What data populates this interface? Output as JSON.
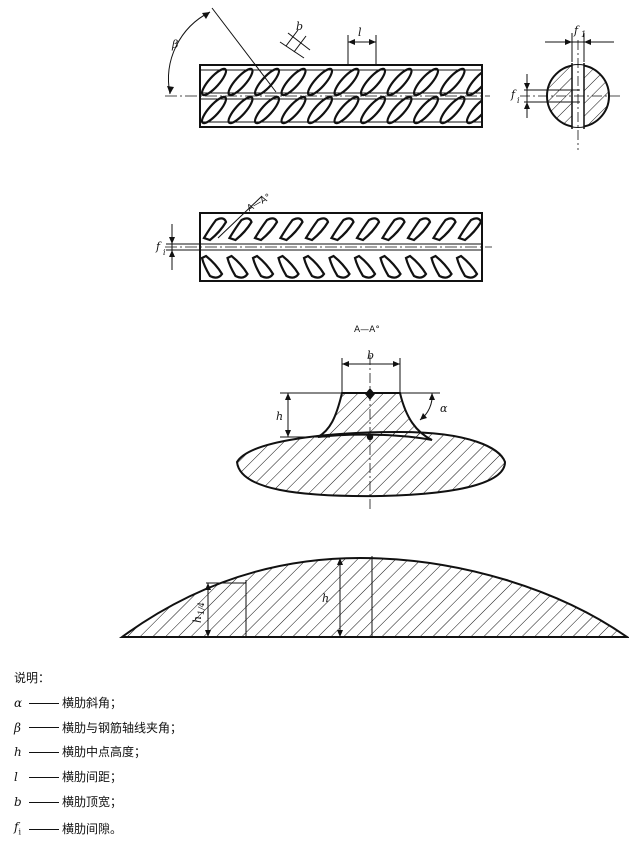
{
  "labels": {
    "beta": "β",
    "b": "b",
    "l": "l",
    "f1": "f",
    "f1_sub": "1",
    "fi": "f",
    "fi_sub": "i",
    "section_mark": "A—A°",
    "section_title": "A—A°",
    "b_section": "b",
    "h_section": "h",
    "alpha": "α",
    "h_ridge": "h",
    "h_quarter": "h",
    "h_quarter_sub": "1/4"
  },
  "legend": {
    "heading": "说明：",
    "items": [
      {
        "symbol": "α",
        "sub": "",
        "text": "横肋斜角；"
      },
      {
        "symbol": "β",
        "sub": "",
        "text": "横肋与钢筋轴线夹角；"
      },
      {
        "symbol": "h",
        "sub": "",
        "text": "横肋中点高度；"
      },
      {
        "symbol": "l",
        "sub": "",
        "text": "横肋间距；"
      },
      {
        "symbol": "b",
        "sub": "",
        "text": "横肋顶宽；"
      },
      {
        "symbol": "f",
        "sub": "i",
        "text": "横肋间隙。"
      }
    ]
  }
}
